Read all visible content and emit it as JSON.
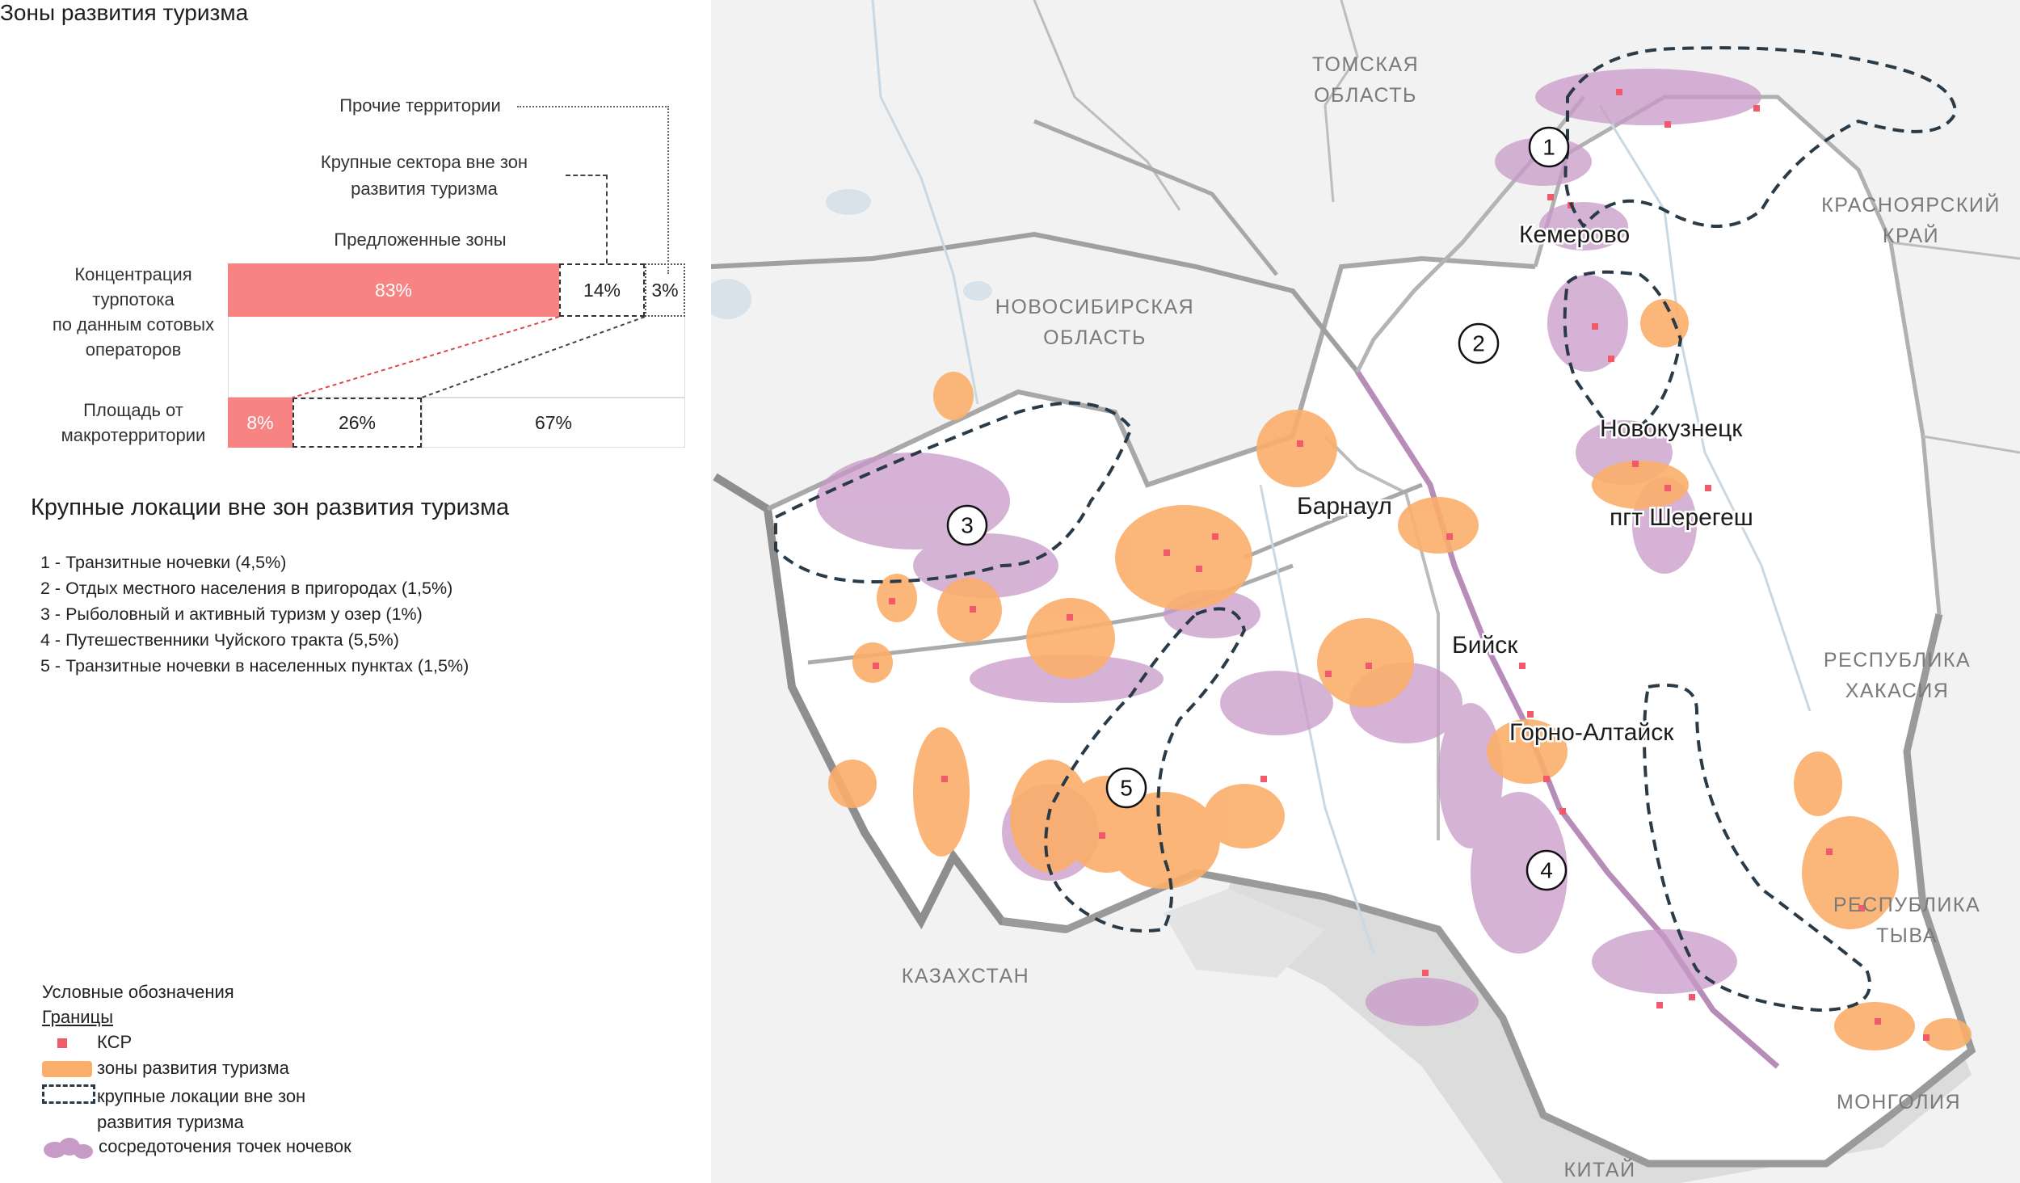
{
  "title": "Зоны развития туризма",
  "chart": {
    "labels": {
      "other": "Прочие территории",
      "outside": "Крупные сектора вне зон\nразвития туризма",
      "proposed": "Предложенные зоны"
    },
    "rows": [
      {
        "label": "Концентрация\nтурпотока\nпо данным сотовых\nоператоров",
        "proposed": "83%",
        "outside": "14%",
        "other": "3%"
      },
      {
        "label": "Площадь от\nмакротерритории",
        "proposed": "8%",
        "outside": "26%",
        "other": "67%"
      }
    ]
  },
  "chart_data": {
    "type": "bar",
    "categories": [
      "Концентрация турпотока по данным сотовых операторов",
      "Площадь от макротерритории"
    ],
    "series": [
      {
        "name": "Предложенные зоны",
        "values": [
          83,
          8
        ]
      },
      {
        "name": "Крупные сектора вне зон развития туризма",
        "values": [
          14,
          26
        ]
      },
      {
        "name": "Прочие территории",
        "values": [
          3,
          67
        ]
      }
    ],
    "unit": "%",
    "stacked": true
  },
  "locations": {
    "title": "Крупные локации вне зон развития туризма",
    "items": [
      "1 - Транзитные ночевки (4,5%)",
      "2 - Отдых местного населения в пригородах (1,5%)",
      "3 - Рыболовный и активный туризм у озер (1%)",
      "4 - Путешественники Чуйского тракта (5,5%)",
      "5 - Транзитные ночевки в населенных пунктах (1,5%)"
    ]
  },
  "legend": {
    "title": "Условные обозначения",
    "bounds": "Границы",
    "items": [
      {
        "icon": "ksr-square-icon",
        "label": "КСР"
      },
      {
        "icon": "tourism-zone-swatch",
        "label": "зоны развития туризма"
      },
      {
        "icon": "dashed-outline-swatch",
        "label": "крупные локации вне зон\nразвития туризма"
      },
      {
        "icon": "night-stay-cluster-icon",
        "label": "сосредоточения точек ночевок"
      }
    ]
  },
  "map": {
    "regions": [
      "ТОМСКАЯ\nОБЛАСТЬ",
      "НОВОСИБИРСКАЯ\nОБЛАСТЬ",
      "КРАСНОЯРСКИЙ\nКРАЙ",
      "РЕСПУБЛИКА\nХАКАСИЯ",
      "РЕСПУБЛИКА\nТЫВА",
      "КАЗАХСТАН",
      "МОНГОЛИЯ",
      "КИТАЙ"
    ],
    "cities": [
      "Кемерово",
      "Новокузнецк",
      "пгт Шерегеш",
      "Барнаул",
      "Бийск",
      "Горно-Алтайск"
    ],
    "zones": [
      "1",
      "2",
      "3",
      "4",
      "5"
    ]
  },
  "colors": {
    "ksr": "#f05a6a",
    "tourism_zone": "#fbae6b",
    "night_stay": "#c89ac8",
    "accent_bar": "#f78383",
    "outline": "#2a3b47"
  }
}
